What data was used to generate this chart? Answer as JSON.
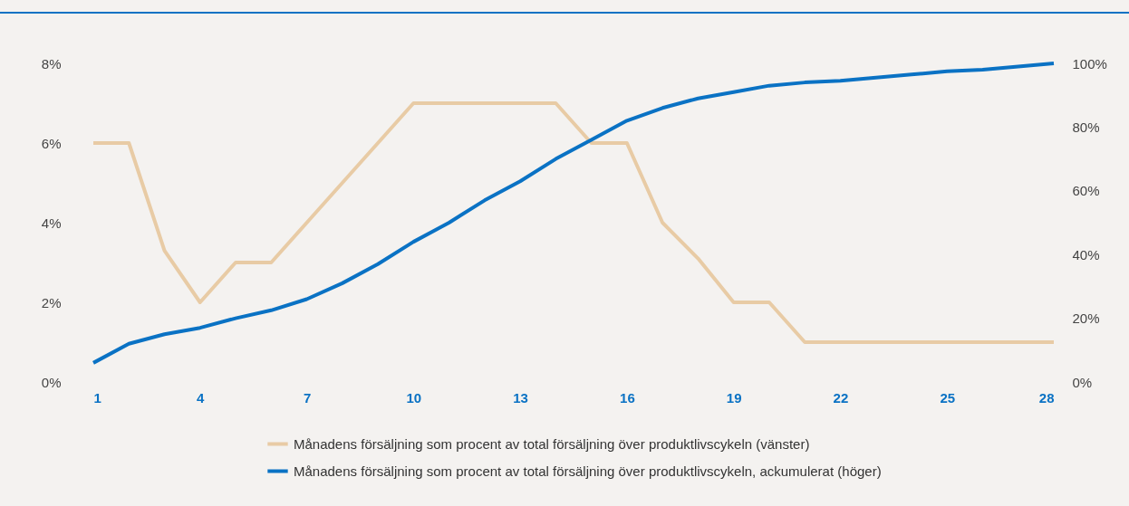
{
  "chart_data": {
    "type": "line",
    "x": [
      1,
      2,
      3,
      4,
      5,
      6,
      7,
      8,
      9,
      10,
      11,
      12,
      13,
      14,
      15,
      16,
      17,
      18,
      19,
      20,
      21,
      22,
      23,
      24,
      25,
      26,
      27,
      28
    ],
    "xlim": [
      1,
      28
    ],
    "xticks": [
      1,
      4,
      7,
      10,
      13,
      16,
      19,
      22,
      25,
      28
    ],
    "ylim": [
      0,
      8
    ],
    "yticks": [
      {
        "value": 0,
        "label": "0%"
      },
      {
        "value": 2,
        "label": "2%"
      },
      {
        "value": 4,
        "label": "4%"
      },
      {
        "value": 6,
        "label": "6%"
      },
      {
        "value": 8,
        "label": "8%"
      }
    ],
    "y2lim": [
      0,
      100
    ],
    "y2ticks": [
      {
        "value": 0,
        "label": "0%"
      },
      {
        "value": 20,
        "label": "20%"
      },
      {
        "value": 40,
        "label": "40%"
      },
      {
        "value": 60,
        "label": "60%"
      },
      {
        "value": 80,
        "label": "80%"
      },
      {
        "value": 100,
        "label": "100%"
      }
    ],
    "legend": "bottom",
    "series": [
      {
        "name": "Månadens försäljning som procent av total försäljning över produktlivscykeln (vänster)",
        "color": "#e8cba5",
        "values": [
          6,
          6,
          3.3,
          2,
          3,
          3,
          4,
          5,
          6,
          7,
          7,
          7,
          7,
          7,
          6,
          6,
          4,
          3.1,
          2,
          2,
          1,
          1,
          1,
          1,
          1,
          1,
          1,
          1
        ]
      },
      {
        "name": "Månadens försäljning som procent av total försäljning över produktlivscykeln, ackumulerat (höger)",
        "color": "#0a72c4",
        "axis": "y2",
        "values": [
          6,
          12,
          15,
          17,
          20,
          22.5,
          26,
          31,
          37,
          44,
          50,
          57,
          63,
          70,
          76,
          82,
          86,
          89,
          91,
          93,
          94,
          94.5,
          95.5,
          96.5,
          97.5,
          98,
          99,
          100
        ]
      }
    ]
  }
}
